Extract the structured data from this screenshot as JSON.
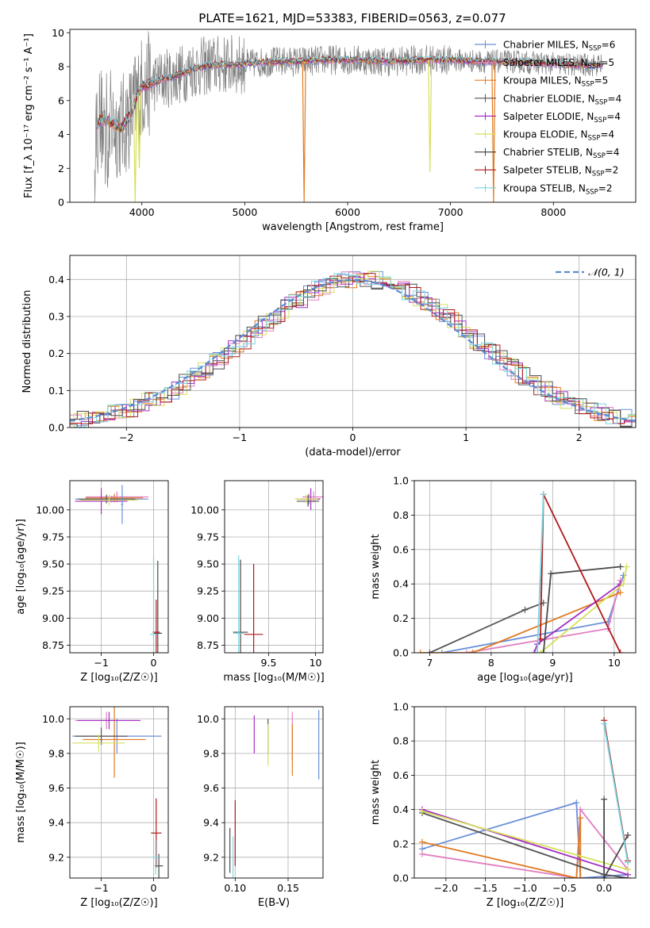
{
  "figure_title": "PLATE=1621, MJD=53383, FIBERID=0563, z=0.077",
  "colors": {
    "Chabrier MILES": "#6a8fd8",
    "Salpeter MILES": "#e17fc0",
    "Kroupa MILES": "#e07b22",
    "Chabrier ELODIE": "#555555",
    "Salpeter ELODIE": "#a62fc2",
    "Kroupa ELODIE": "#d6e05c",
    "Chabrier STELIB": "#4a4a4a",
    "Salpeter STELIB": "#b0191a",
    "Kroupa STELIB": "#7ad6e0",
    "spectrum": "#808080",
    "gaussian": "#5b8bd4",
    "grid": "#b0b0b0"
  },
  "chart_data": [
    {
      "id": "spectrum",
      "type": "line",
      "xlabel": "wavelength [Angstrom, rest frame]",
      "ylabel": "Flux [f_λ 10⁻¹⁷ erg cm⁻² s⁻¹ A⁻¹]",
      "xlim": [
        3300,
        8800
      ],
      "ylim": [
        0,
        10.2
      ],
      "xticks": [
        4000,
        5000,
        6000,
        7000,
        8000
      ],
      "yticks": [
        0,
        2,
        4,
        6,
        8,
        10
      ],
      "grid": false,
      "legend": "upper-right",
      "series": [
        {
          "name": "Chabrier MILES",
          "sub": "SSP",
          "n": 6
        },
        {
          "name": "Salpeter MILES",
          "sub": "SSP",
          "n": 5
        },
        {
          "name": "Kroupa MILES",
          "sub": "SSP",
          "n": 5
        },
        {
          "name": "Chabrier ELODIE",
          "sub": "SSP",
          "n": 4
        },
        {
          "name": "Salpeter ELODIE",
          "sub": "SSP",
          "n": 4
        },
        {
          "name": "Kroupa ELODIE",
          "sub": "SSP",
          "n": 4
        },
        {
          "name": "Chabrier STELIB",
          "sub": "SSP",
          "n": 4
        },
        {
          "name": "Salpeter STELIB",
          "sub": "SSP",
          "n": 2
        },
        {
          "name": "Kroupa STELIB",
          "sub": "SSP",
          "n": 2
        }
      ],
      "model_curve": {
        "x": [
          3550,
          3600,
          3700,
          3800,
          3900,
          3950,
          4000,
          4100,
          4200,
          4300,
          4400,
          4500,
          4700,
          4900,
          5100,
          5300,
          5500,
          5800,
          6100,
          6400,
          6700,
          7000,
          7300,
          7600,
          7900,
          8200,
          8500
        ],
        "y": [
          4.5,
          4.9,
          4.7,
          4.4,
          5.2,
          6.2,
          6.8,
          7.0,
          7.3,
          7.4,
          7.6,
          7.9,
          8.1,
          8.1,
          8.2,
          8.3,
          8.3,
          8.4,
          8.4,
          8.3,
          8.4,
          8.4,
          8.3,
          8.3,
          8.2,
          8.1,
          8.1
        ]
      },
      "dips": [
        {
          "x": 3935,
          "y": 0,
          "color": "Kroupa ELODIE"
        },
        {
          "x": 3975,
          "y": 2.0,
          "color": "Kroupa ELODIE"
        },
        {
          "x": 5577,
          "y": 0,
          "color": "Kroupa MILES"
        },
        {
          "x": 6800,
          "y": 1.8,
          "color": "Kroupa ELODIE"
        },
        {
          "x": 7418,
          "y": 0,
          "color": "Kroupa MILES"
        }
      ]
    },
    {
      "id": "residuals",
      "type": "step",
      "xlabel": "(data-model)/error",
      "ylabel": "Normed distribution",
      "xlim": [
        -2.5,
        2.5
      ],
      "ylim": [
        0,
        0.465
      ],
      "xticks": [
        -2,
        -1,
        0,
        1,
        2
      ],
      "yticks": [
        0.0,
        0.1,
        0.2,
        0.3,
        0.4
      ],
      "grid": true,
      "legend_label": "𝒩(0, 1)",
      "legend": "upper-right"
    },
    {
      "id": "age_vs_Z",
      "type": "errorbar",
      "xlabel": "Z [log₁₀(Z/Z☉)]",
      "ylabel": "age  [log₁₀(age/yr)]",
      "xlim": [
        -1.6,
        0.28
      ],
      "ylim": [
        8.68,
        10.27
      ],
      "xticks": [
        -1,
        0
      ],
      "yticks": [
        8.75,
        9.0,
        9.25,
        9.5,
        9.75,
        10.0
      ],
      "grid": true
    },
    {
      "id": "age_vs_mass",
      "type": "errorbar",
      "xlabel": "mass [log₁₀(M/M☉)]",
      "xlim": [
        9.03,
        10.08
      ],
      "ylim": [
        8.68,
        10.27
      ],
      "xticks": [
        9.5,
        10.0
      ],
      "yticks": [
        8.75,
        9.0,
        9.25,
        9.5,
        9.75,
        10.0
      ],
      "grid": true
    },
    {
      "id": "weight_vs_age",
      "type": "line",
      "xlabel": "age  [log₁₀(age/yr)]",
      "ylabel": "mass weight",
      "xlim": [
        6.75,
        10.35
      ],
      "ylim": [
        0,
        1.0
      ],
      "xticks": [
        7,
        8,
        9,
        10
      ],
      "yticks": [
        0.0,
        0.2,
        0.4,
        0.6,
        0.8,
        1.0
      ],
      "grid": true,
      "series": [
        {
          "name": "Chabrier MILES",
          "x": [
            7.2,
            9.9,
            10.15
          ],
          "y": [
            0.0,
            0.18,
            0.45
          ]
        },
        {
          "name": "Salpeter MILES",
          "x": [
            7.6,
            9.9,
            10.1
          ],
          "y": [
            0.0,
            0.14,
            0.42
          ]
        },
        {
          "name": "Kroupa MILES",
          "x": [
            6.85,
            7.7,
            10.1
          ],
          "y": [
            0.0,
            0.0,
            0.35
          ]
        },
        {
          "name": "Chabrier ELODIE",
          "x": [
            7.0,
            8.55,
            8.85
          ],
          "y": [
            0.0,
            0.25,
            0.29
          ]
        },
        {
          "name": "Salpeter ELODIE",
          "x": [
            8.7,
            8.75,
            10.1
          ],
          "y": [
            0.0,
            0.05,
            0.4
          ]
        },
        {
          "name": "Kroupa ELODIE",
          "x": [
            8.8,
            10.15,
            10.2
          ],
          "y": [
            0.0,
            0.4,
            0.5
          ]
        },
        {
          "name": "Chabrier STELIB",
          "x": [
            8.85,
            8.97,
            10.1
          ],
          "y": [
            0.0,
            0.46,
            0.5
          ]
        },
        {
          "name": "Salpeter STELIB",
          "x": [
            8.8,
            8.85,
            10.1
          ],
          "y": [
            0.08,
            0.92,
            0.0
          ]
        },
        {
          "name": "Kroupa STELIB",
          "x": [
            8.75,
            8.85
          ],
          "y": [
            0.0,
            0.92
          ]
        }
      ]
    },
    {
      "id": "mass_vs_Z",
      "type": "errorbar",
      "xlabel": "Z [log₁₀(Z/Z☉)]",
      "ylabel": "mass [log₁₀(M/M☉)]",
      "xlim": [
        -1.6,
        0.28
      ],
      "ylim": [
        9.08,
        10.07
      ],
      "xticks": [
        -1,
        0
      ],
      "yticks": [
        9.2,
        9.4,
        9.6,
        9.8,
        10.0
      ],
      "grid": true
    },
    {
      "id": "mass_vs_EBV",
      "type": "errorbar",
      "xlabel": "E(B-V)",
      "xlim": [
        0.09,
        0.183
      ],
      "ylim": [
        9.08,
        10.07
      ],
      "xticks": [
        0.1,
        0.15
      ],
      "yticks": [
        9.2,
        9.4,
        9.6,
        9.8,
        10.0
      ],
      "grid": true
    },
    {
      "id": "weight_vs_Z",
      "type": "line",
      "xlabel": "Z [log₁₀(Z/Z☉)]",
      "ylabel": "mass weight",
      "xlim": [
        -2.4,
        0.4
      ],
      "ylim": [
        0,
        1.0
      ],
      "xticks": [
        -2.0,
        -1.5,
        -1.0,
        -0.5,
        0.0
      ],
      "yticks": [
        0.0,
        0.2,
        0.4,
        0.6,
        0.8,
        1.0
      ],
      "grid": true,
      "series": [
        {
          "name": "Chabrier MILES",
          "x": [
            -2.3,
            -0.35,
            -0.3,
            0.3
          ],
          "y": [
            0.17,
            0.44,
            0.0,
            0.02
          ]
        },
        {
          "name": "Salpeter MILES",
          "x": [
            -2.3,
            -0.35,
            -0.3,
            0.3
          ],
          "y": [
            0.14,
            0.0,
            0.4,
            0.05
          ]
        },
        {
          "name": "Kroupa MILES",
          "x": [
            -2.3,
            -0.35,
            -0.3,
            -0.3
          ],
          "y": [
            0.21,
            0.0,
            0.35,
            0.0
          ]
        },
        {
          "name": "Chabrier ELODIE",
          "x": [
            -2.3,
            0.0,
            0.3
          ],
          "y": [
            0.38,
            0.02,
            0.0
          ]
        },
        {
          "name": "Salpeter ELODIE",
          "x": [
            -2.3,
            0.3
          ],
          "y": [
            0.4,
            0.02
          ]
        },
        {
          "name": "Kroupa ELODIE",
          "x": [
            -2.3,
            0.3
          ],
          "y": [
            0.39,
            0.05
          ]
        },
        {
          "name": "Chabrier STELIB",
          "x": [
            0.0,
            0.0,
            0.0,
            0.3
          ],
          "y": [
            0.46,
            0.0,
            0.0,
            0.25
          ]
        },
        {
          "name": "Salpeter STELIB",
          "x": [
            0.0,
            0.3
          ],
          "y": [
            0.92,
            0.1
          ]
        },
        {
          "name": "Kroupa STELIB",
          "x": [
            0.0,
            0.3
          ],
          "y": [
            0.9,
            0.09
          ]
        }
      ]
    }
  ]
}
